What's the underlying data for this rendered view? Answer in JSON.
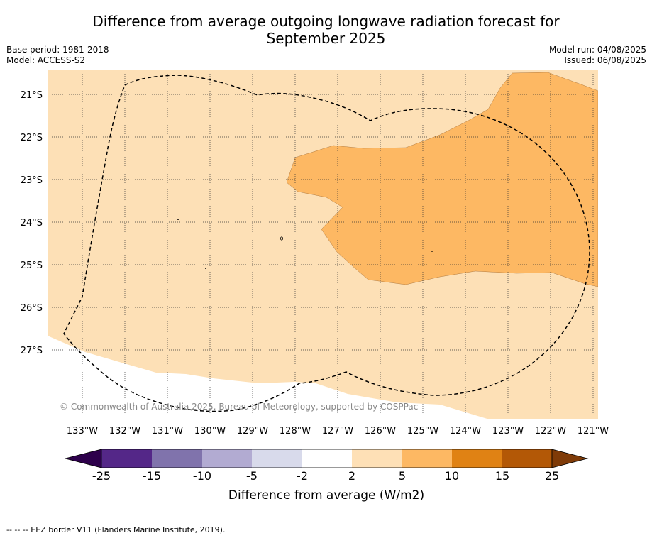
{
  "title_line1": "Difference from average outgoing longwave radiation forecast for",
  "title_line2": "September 2025",
  "base_period": "Base period: 1981-2018",
  "model": "Model: ACCESS-S2",
  "model_run": "Model run: 04/08/2025",
  "issued": "Issued: 06/08/2025",
  "copyright": "© Commonwealth of Australia 2025, Bureau of Meteorology, supported by COSPPac",
  "footer": "-- -- -- EEZ border V11 (Flanders Marine Institute, 2019).",
  "map": {
    "lon_labels": [
      "133°W",
      "132°W",
      "131°W",
      "130°W",
      "129°W",
      "128°W",
      "127°W",
      "126°W",
      "125°W",
      "124°W",
      "123°W",
      "122°W",
      "121°W"
    ],
    "lat_labels": [
      "21°S",
      "22°S",
      "23°S",
      "24°S",
      "25°S",
      "26°S",
      "27°S"
    ]
  },
  "colorbar": {
    "label": "Difference from average (W/m2)",
    "ticks": [
      "-25",
      "-15",
      "-10",
      "-5",
      "-2",
      "2",
      "5",
      "10",
      "15",
      "25"
    ],
    "colors": {
      "under": "#2d004b",
      "bins": [
        "#542788",
        "#8073ac",
        "#b2abd2",
        "#d8daeb",
        "#ffffff",
        "#fee0b6",
        "#fdb863",
        "#e08214",
        "#b35806"
      ],
      "over": "#7f3b08"
    }
  }
}
